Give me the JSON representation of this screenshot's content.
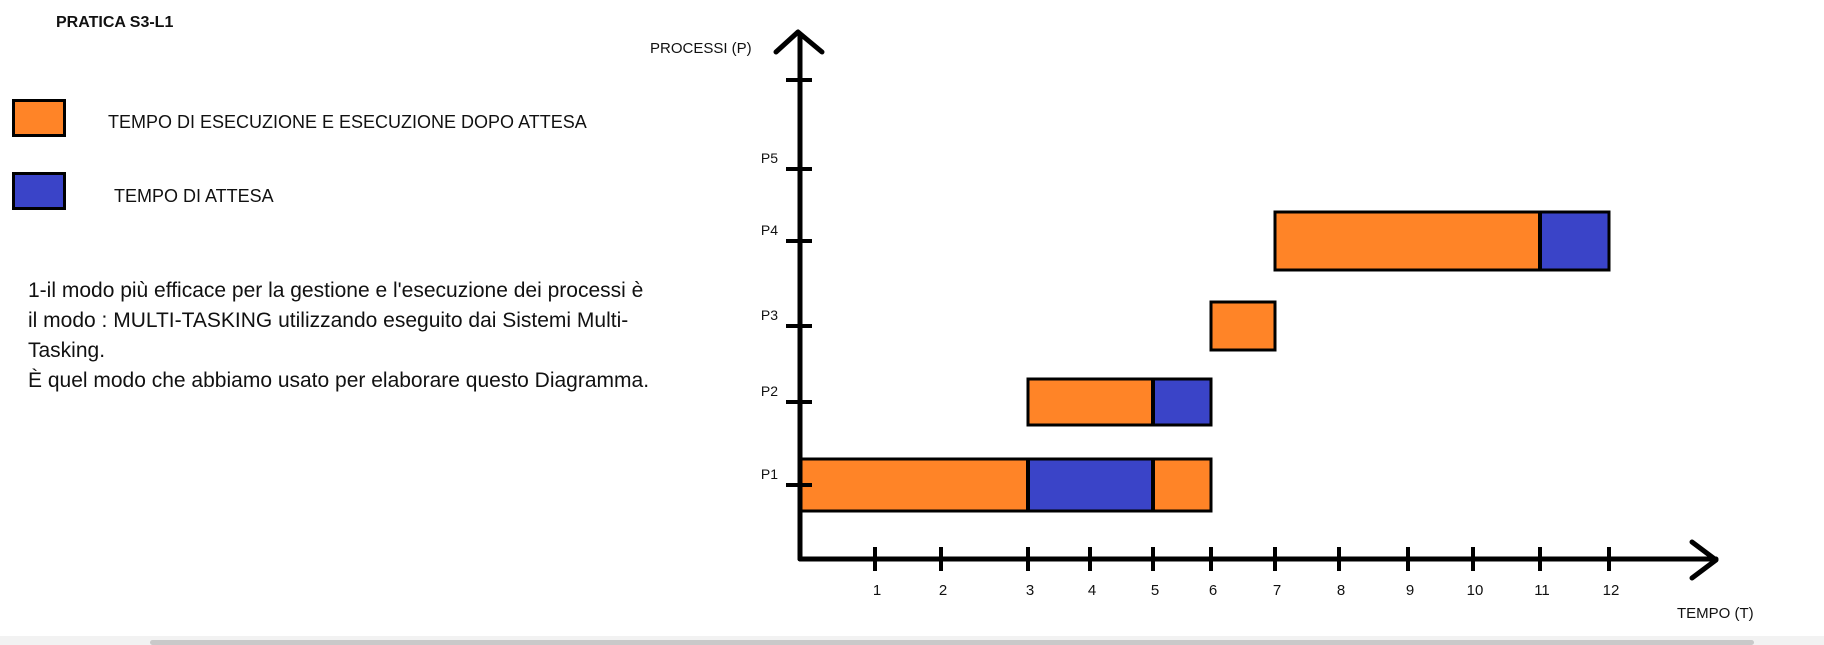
{
  "title": "PRATICA S3-L1",
  "legend": [
    {
      "label": "TEMPO DI ESECUZIONE E ESECUZIONE DOPO ATTESA",
      "color": "#ff8427"
    },
    {
      "label": "TEMPO DI ATTESA",
      "color": "#3a44c8"
    }
  ],
  "notes": [
    "1-il modo più efficace per la gestione e l'esecuzione dei processi è il modo : MULTI-TASKING utilizzando eseguito dai Sistemi Multi-Tasking.",
    " È quel modo che abbiamo usato per elaborare questo Diagramma."
  ],
  "chart_data": {
    "type": "gantt",
    "xlabel": "TEMPO (T)",
    "ylabel": "PROCESSI (P)",
    "x_ticks": [
      1,
      2,
      3,
      4,
      5,
      6,
      7,
      8,
      9,
      10,
      11,
      12
    ],
    "y_categories": [
      "P1",
      "P2",
      "P3",
      "P4",
      "P5"
    ],
    "xlim": [
      0,
      13
    ],
    "colors": {
      "execution": "#ff8427",
      "waiting": "#3a44c8"
    },
    "segments": [
      {
        "process": "P1",
        "start": 0,
        "end": 3,
        "kind": "execution"
      },
      {
        "process": "P1",
        "start": 3,
        "end": 5,
        "kind": "waiting"
      },
      {
        "process": "P1",
        "start": 5,
        "end": 6,
        "kind": "execution"
      },
      {
        "process": "P2",
        "start": 3,
        "end": 5,
        "kind": "execution"
      },
      {
        "process": "P2",
        "start": 5,
        "end": 6,
        "kind": "waiting"
      },
      {
        "process": "P3",
        "start": 6,
        "end": 7,
        "kind": "execution"
      },
      {
        "process": "P4",
        "start": 7,
        "end": 11,
        "kind": "execution"
      },
      {
        "process": "P4",
        "start": 11,
        "end": 12,
        "kind": "waiting"
      }
    ]
  }
}
